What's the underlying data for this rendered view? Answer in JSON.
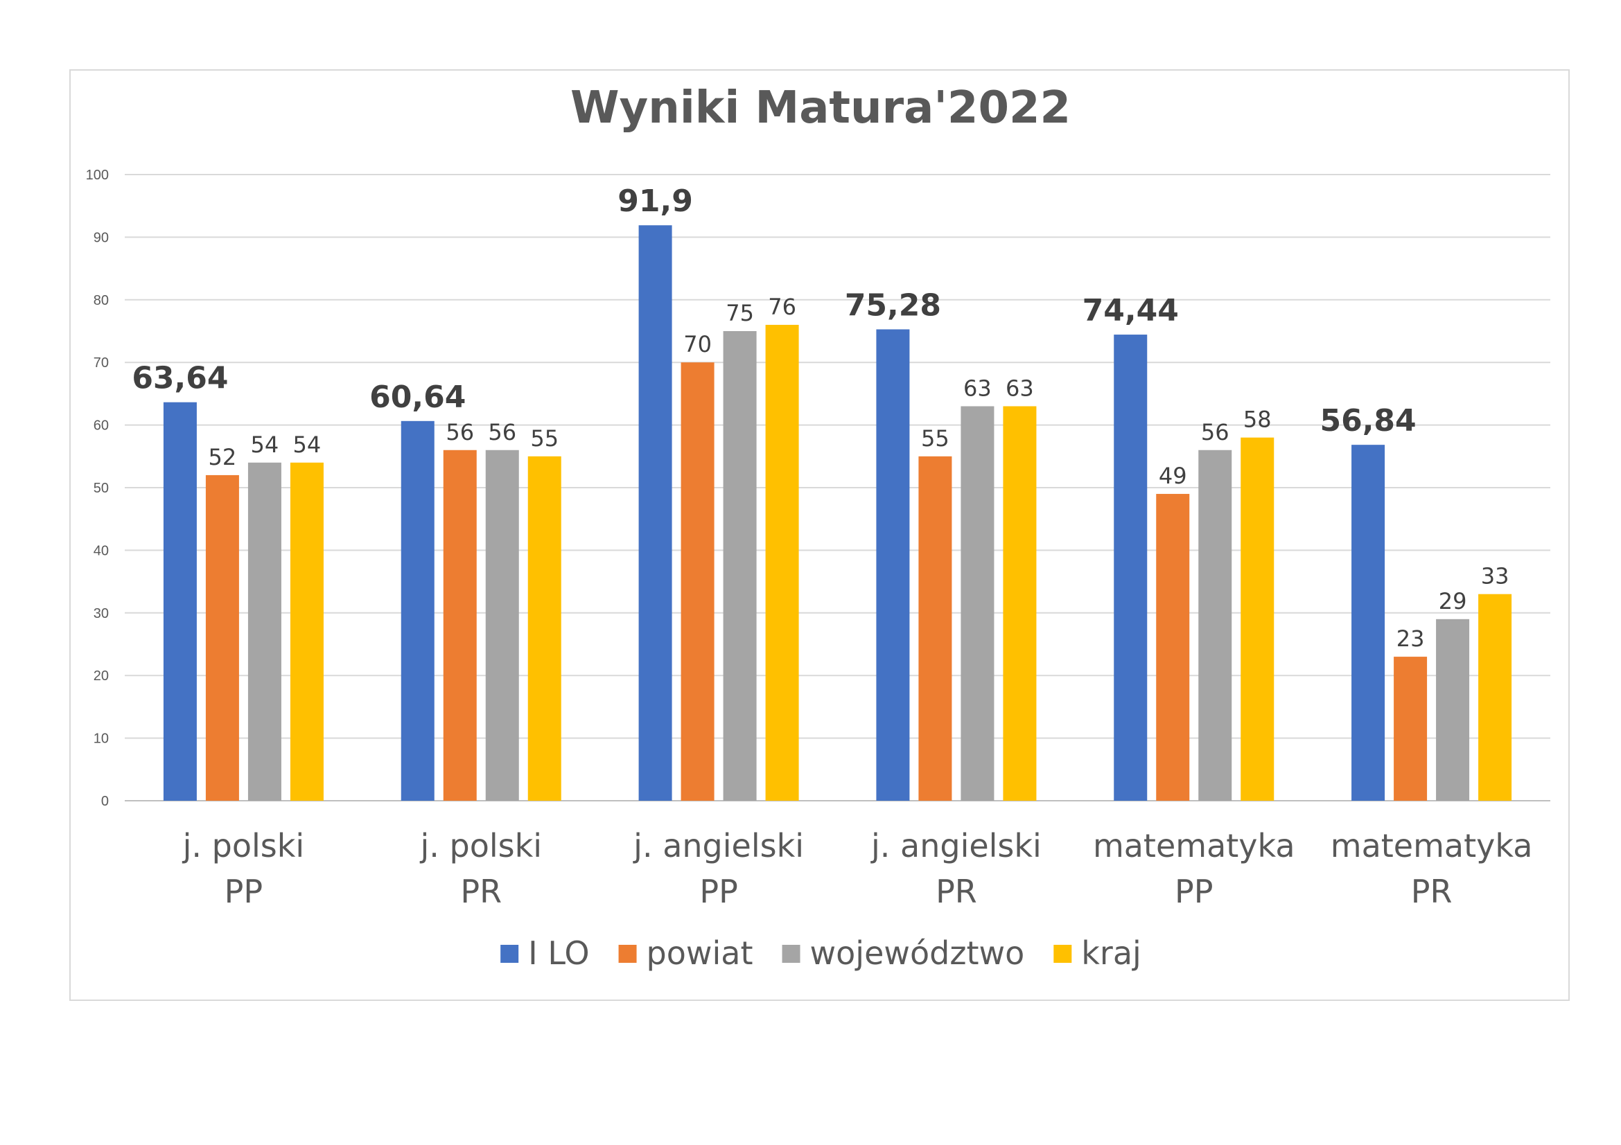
{
  "chart_data": {
    "type": "bar",
    "title": "Wyniki Matura'2022",
    "categories": [
      [
        "j. polski",
        "PP"
      ],
      [
        "j. polski",
        "PR"
      ],
      [
        "j. angielski",
        "PP"
      ],
      [
        "j. angielski",
        "PR"
      ],
      [
        "matematyka",
        "PP"
      ],
      [
        "matematyka",
        "PR"
      ]
    ],
    "series": [
      {
        "name": "I LO",
        "color": "#4472C4",
        "values": [
          63.64,
          60.64,
          91.9,
          75.28,
          74.44,
          56.84
        ],
        "labels": [
          "63,64",
          "60,64",
          "91,9",
          "75,28",
          "74,44",
          "56,84"
        ]
      },
      {
        "name": "powiat",
        "color": "#ED7D31",
        "values": [
          52,
          56,
          70,
          55,
          49,
          23
        ],
        "labels": [
          "52",
          "56",
          "70",
          "55",
          "49",
          "23"
        ]
      },
      {
        "name": "województwo",
        "color": "#A5A5A5",
        "values": [
          54,
          56,
          75,
          63,
          56,
          29
        ],
        "labels": [
          "54",
          "56",
          "75",
          "63",
          "56",
          "29"
        ]
      },
      {
        "name": "kraj",
        "color": "#FFC000",
        "values": [
          54,
          55,
          76,
          63,
          58,
          33
        ],
        "labels": [
          "54",
          "55",
          "76",
          "63",
          "58",
          "33"
        ]
      }
    ],
    "ylim": [
      0,
      100
    ],
    "yticks": [
      "0",
      "10",
      "20",
      "30",
      "40",
      "50",
      "60",
      "70",
      "80",
      "90",
      "100"
    ],
    "grid": true,
    "legend": "bottom"
  }
}
